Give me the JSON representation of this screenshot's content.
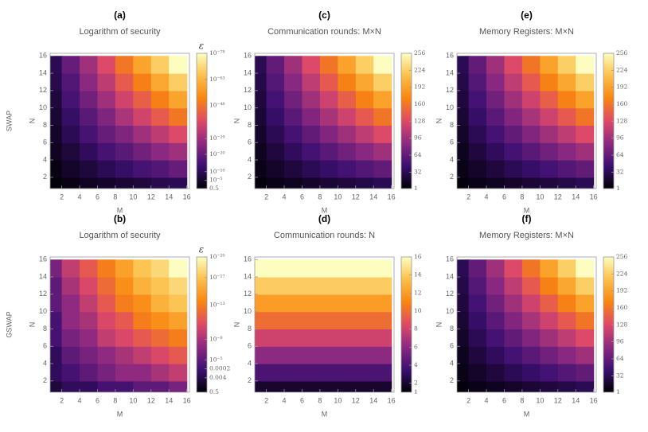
{
  "chart_data": [
    {
      "type": "heatmap",
      "panel": "(a)",
      "title": "Logarithm of security",
      "row_label": "SWAP",
      "xlabel": "M",
      "ylabel": "N",
      "xlim": [
        0.7,
        16.3
      ],
      "ylim": [
        0.7,
        16.3
      ],
      "xticks": [
        2,
        4,
        6,
        8,
        10,
        12,
        14,
        16
      ],
      "yticks": [
        2,
        4,
        6,
        8,
        10,
        12,
        14,
        16
      ],
      "x": [
        2,
        4,
        6,
        8,
        10,
        12,
        14,
        16
      ],
      "y": [
        2,
        4,
        6,
        8,
        10,
        12,
        14,
        16
      ],
      "z": [
        [
          0.1,
          0.01,
          0.0001,
          1e-05,
          1e-06,
          1e-07,
          1e-09,
          1e-10
        ],
        [
          0.01,
          1e-05,
          1e-07,
          1e-10,
          1e-12,
          1e-15,
          1e-17,
          1e-20
        ],
        [
          0.0001,
          1e-07,
          1e-11,
          1e-15,
          1e-18,
          1e-22,
          1e-26,
          1e-29
        ],
        [
          1e-05,
          1e-10,
          1e-15,
          1e-20,
          1e-24,
          1e-29,
          1e-34,
          1e-39
        ],
        [
          1e-06,
          1e-12,
          1e-18,
          1e-24,
          1e-31,
          1e-37,
          1e-43,
          1e-49
        ],
        [
          1e-07,
          1e-15,
          1e-22,
          1e-29,
          1e-37,
          1e-44,
          1e-51,
          1e-59
        ],
        [
          1e-09,
          1e-17,
          1e-26,
          1e-34,
          1e-43,
          1e-51,
          1e-60,
          1e-68
        ],
        [
          1e-10,
          1e-20,
          1e-29,
          1e-39,
          1e-49,
          1e-59,
          1e-68,
          1e-78
        ]
      ],
      "colorbar_label": "ε",
      "color_scale": "log",
      "clim": [
        0.5,
        1e-78
      ],
      "cticks": [
        0.5,
        {
          "value": 1e-05,
          "label": "10⁻⁵"
        },
        {
          "value": 1e-10,
          "label": "10⁻¹⁰"
        },
        {
          "value": 1e-20,
          "label": "10⁻²⁰"
        },
        {
          "value": 1e-29,
          "label": "10⁻²⁹"
        },
        {
          "value": 1e-48,
          "label": "10⁻⁴⁸"
        },
        {
          "value": 1e-63,
          "label": "10⁻⁶³"
        },
        {
          "value": 1e-78,
          "label": "10⁻⁷⁸"
        }
      ],
      "colormap": [
        "#000004",
        "#3b0f70",
        "#8c2981",
        "#de4968",
        "#f8850f",
        "#fcbf49",
        "#fcfdbf"
      ]
    },
    {
      "type": "heatmap",
      "panel": "(c)",
      "title": "Communication rounds: M×N",
      "xlabel": "M",
      "ylabel": "N",
      "xlim": [
        0.7,
        16.3
      ],
      "ylim": [
        0.7,
        16.3
      ],
      "xticks": [
        2,
        4,
        6,
        8,
        10,
        12,
        14,
        16
      ],
      "yticks": [
        2,
        4,
        6,
        8,
        10,
        12,
        14,
        16
      ],
      "x": [
        2,
        4,
        6,
        8,
        10,
        12,
        14,
        16
      ],
      "y": [
        2,
        4,
        6,
        8,
        10,
        12,
        14,
        16
      ],
      "z": [
        [
          4,
          8,
          12,
          16,
          20,
          24,
          28,
          32
        ],
        [
          8,
          16,
          24,
          32,
          40,
          48,
          56,
          64
        ],
        [
          12,
          24,
          36,
          48,
          60,
          72,
          84,
          96
        ],
        [
          16,
          32,
          48,
          64,
          80,
          96,
          112,
          128
        ],
        [
          20,
          40,
          60,
          80,
          100,
          120,
          140,
          160
        ],
        [
          24,
          48,
          72,
          96,
          120,
          144,
          168,
          192
        ],
        [
          28,
          56,
          84,
          112,
          140,
          168,
          196,
          224
        ],
        [
          32,
          64,
          96,
          128,
          160,
          192,
          224,
          256
        ]
      ],
      "color_scale": "linear",
      "clim": [
        1,
        256
      ],
      "cticks": [
        1,
        32,
        64,
        96,
        128,
        160,
        192,
        224,
        256
      ],
      "colormap": [
        "#000004",
        "#3b0f70",
        "#8c2981",
        "#de4968",
        "#f8850f",
        "#fcbf49",
        "#fcfdbf"
      ]
    },
    {
      "type": "heatmap",
      "panel": "(e)",
      "title": "Memory Registers: M×N",
      "xlabel": "M",
      "ylabel": "N",
      "xlim": [
        0.7,
        16.3
      ],
      "ylim": [
        0.7,
        16.3
      ],
      "xticks": [
        2,
        4,
        6,
        8,
        10,
        12,
        14,
        16
      ],
      "yticks": [
        2,
        4,
        6,
        8,
        10,
        12,
        14,
        16
      ],
      "x": [
        2,
        4,
        6,
        8,
        10,
        12,
        14,
        16
      ],
      "y": [
        2,
        4,
        6,
        8,
        10,
        12,
        14,
        16
      ],
      "z": [
        [
          4,
          8,
          12,
          16,
          20,
          24,
          28,
          32
        ],
        [
          8,
          16,
          24,
          32,
          40,
          48,
          56,
          64
        ],
        [
          12,
          24,
          36,
          48,
          60,
          72,
          84,
          96
        ],
        [
          16,
          32,
          48,
          64,
          80,
          96,
          112,
          128
        ],
        [
          20,
          40,
          60,
          80,
          100,
          120,
          140,
          160
        ],
        [
          24,
          48,
          72,
          96,
          120,
          144,
          168,
          192
        ],
        [
          28,
          56,
          84,
          112,
          140,
          168,
          196,
          224
        ],
        [
          32,
          64,
          96,
          128,
          160,
          192,
          224,
          256
        ]
      ],
      "color_scale": "linear",
      "clim": [
        1,
        256
      ],
      "cticks": [
        1,
        32,
        64,
        96,
        128,
        160,
        192,
        224,
        256
      ],
      "colormap": [
        "#000004",
        "#3b0f70",
        "#8c2981",
        "#de4968",
        "#f8850f",
        "#fcbf49",
        "#fcfdbf"
      ]
    },
    {
      "type": "heatmap",
      "panel": "(b)",
      "title": "Logarithm of security",
      "row_label": "GSWAP",
      "xlabel": "M",
      "ylabel": "N",
      "xlim": [
        0.7,
        16.3
      ],
      "ylim": [
        0.7,
        16.3
      ],
      "xticks": [
        2,
        4,
        6,
        8,
        10,
        12,
        14,
        16
      ],
      "yticks": [
        2,
        4,
        6,
        8,
        10,
        12,
        14,
        16
      ],
      "x": [
        2,
        4,
        6,
        8,
        10,
        12,
        14,
        16
      ],
      "y": [
        2,
        4,
        6,
        8,
        10,
        12,
        14,
        16
      ],
      "z": [
        [
          0.01,
          0.001,
          0.001,
          0.0001,
          0.0001,
          1e-05,
          1e-05,
          1e-06
        ],
        [
          0.001,
          0.0001,
          1e-05,
          1e-06,
          1e-07,
          1e-07,
          1e-08,
          1e-09
        ],
        [
          0.001,
          1e-05,
          1e-06,
          1e-07,
          1e-08,
          1e-09,
          1e-10,
          1e-11
        ],
        [
          0.0001,
          1e-06,
          1e-07,
          1e-09,
          1e-10,
          1e-11,
          1e-12,
          1e-13
        ],
        [
          0.0001,
          1e-07,
          1e-08,
          1e-10,
          1e-11,
          1e-13,
          1e-14,
          1e-15
        ],
        [
          1e-05,
          1e-07,
          1e-09,
          1e-11,
          1e-13,
          1e-14,
          1e-16,
          1e-17
        ],
        [
          1e-05,
          1e-08,
          1e-10,
          1e-12,
          1e-14,
          1e-16,
          1e-17,
          1e-18
        ],
        [
          1e-06,
          1e-09,
          1e-11,
          1e-13,
          1e-15,
          1e-17,
          1e-18,
          1e-20
        ]
      ],
      "colorbar_label": "ε",
      "color_scale": "log",
      "clim": [
        0.5,
        1e-20
      ],
      "cticks": [
        0.5,
        0.004,
        0.0002,
        {
          "value": 1e-05,
          "label": "10⁻⁵"
        },
        {
          "value": 1e-08,
          "label": "10⁻⁸"
        },
        {
          "value": 1e-13,
          "label": "10⁻¹³"
        },
        {
          "value": 1e-17,
          "label": "10⁻¹⁷"
        },
        {
          "value": 1e-20,
          "label": "10⁻²⁰"
        }
      ],
      "colormap": [
        "#000004",
        "#3b0f70",
        "#8c2981",
        "#de4968",
        "#f8850f",
        "#fcbf49",
        "#fcfdbf"
      ]
    },
    {
      "type": "heatmap",
      "panel": "(d)",
      "title": "Communication rounds: N",
      "xlabel": "M",
      "ylabel": "N",
      "xlim": [
        0.7,
        16.3
      ],
      "ylim": [
        0.7,
        16.3
      ],
      "xticks": [
        2,
        4,
        6,
        8,
        10,
        12,
        14,
        16
      ],
      "yticks": [
        2,
        4,
        6,
        8,
        10,
        12,
        14,
        16
      ],
      "x": [
        2,
        4,
        6,
        8,
        10,
        12,
        14,
        16
      ],
      "y": [
        2,
        4,
        6,
        8,
        10,
        12,
        14,
        16
      ],
      "z": [
        [
          2,
          2,
          2,
          2,
          2,
          2,
          2,
          2
        ],
        [
          4,
          4,
          4,
          4,
          4,
          4,
          4,
          4
        ],
        [
          6,
          6,
          6,
          6,
          6,
          6,
          6,
          6
        ],
        [
          8,
          8,
          8,
          8,
          8,
          8,
          8,
          8
        ],
        [
          10,
          10,
          10,
          10,
          10,
          10,
          10,
          10
        ],
        [
          12,
          12,
          12,
          12,
          12,
          12,
          12,
          12
        ],
        [
          14,
          14,
          14,
          14,
          14,
          14,
          14,
          14
        ],
        [
          16,
          16,
          16,
          16,
          16,
          16,
          16,
          16
        ]
      ],
      "color_scale": "linear",
      "clim": [
        1,
        16
      ],
      "cticks": [
        1,
        2,
        4,
        6,
        8,
        10,
        12,
        14,
        16
      ],
      "colormap": [
        "#000004",
        "#3b0f70",
        "#8c2981",
        "#de4968",
        "#f8850f",
        "#fcbf49",
        "#fcfdbf"
      ]
    },
    {
      "type": "heatmap",
      "panel": "(f)",
      "title": "Memory Registers: M×N",
      "xlabel": "M",
      "ylabel": "N",
      "xlim": [
        0.7,
        16.3
      ],
      "ylim": [
        0.7,
        16.3
      ],
      "xticks": [
        2,
        4,
        6,
        8,
        10,
        12,
        14,
        16
      ],
      "yticks": [
        2,
        4,
        6,
        8,
        10,
        12,
        14,
        16
      ],
      "x": [
        2,
        4,
        6,
        8,
        10,
        12,
        14,
        16
      ],
      "y": [
        2,
        4,
        6,
        8,
        10,
        12,
        14,
        16
      ],
      "z": [
        [
          4,
          8,
          12,
          16,
          20,
          24,
          28,
          32
        ],
        [
          8,
          16,
          24,
          32,
          40,
          48,
          56,
          64
        ],
        [
          12,
          24,
          36,
          48,
          60,
          72,
          84,
          96
        ],
        [
          16,
          32,
          48,
          64,
          80,
          96,
          112,
          128
        ],
        [
          20,
          40,
          60,
          80,
          100,
          120,
          140,
          160
        ],
        [
          24,
          48,
          72,
          96,
          120,
          144,
          168,
          192
        ],
        [
          28,
          56,
          84,
          112,
          140,
          168,
          196,
          224
        ],
        [
          32,
          64,
          96,
          128,
          160,
          192,
          224,
          256
        ]
      ],
      "color_scale": "linear",
      "clim": [
        1,
        256
      ],
      "cticks": [
        1,
        32,
        64,
        96,
        128,
        160,
        192,
        224,
        256
      ],
      "colormap": [
        "#000004",
        "#3b0f70",
        "#8c2981",
        "#de4968",
        "#f8850f",
        "#fcbf49",
        "#fcfdbf"
      ]
    }
  ]
}
